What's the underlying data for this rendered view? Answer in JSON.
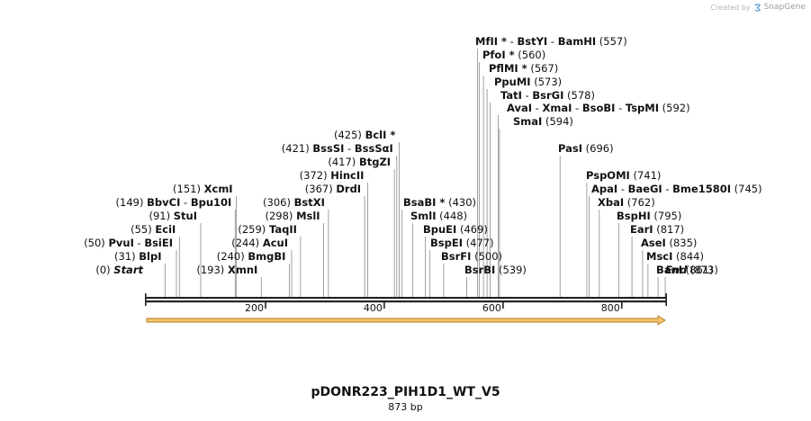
{
  "credit": {
    "prefix": "Created by",
    "brand": "SnapGene",
    "logo_color": "#6aa7d6"
  },
  "map": {
    "name": "pDONR223_PIH1D1_WT_V5",
    "length_label": "873 bp",
    "length": 873,
    "ticks": [
      {
        "pos": 200,
        "label": "200"
      },
      {
        "pos": 400,
        "label": "400"
      },
      {
        "pos": 600,
        "label": "600"
      },
      {
        "pos": 800,
        "label": "800"
      }
    ],
    "feature": {
      "start": 0,
      "end": 873,
      "color": "#f5c76a",
      "edge_color": "#b07a1c"
    },
    "labels": [
      {
        "pos": 0,
        "num": "(0)",
        "parts": [
          "Start"
        ],
        "special": true
      },
      {
        "pos": 31,
        "num": "(31)",
        "parts": [
          "BlpI"
        ]
      },
      {
        "pos": 50,
        "num": "(50)",
        "parts": [
          "PvuI",
          "BsiEI"
        ]
      },
      {
        "pos": 55,
        "num": "(55)",
        "parts": [
          "EciI"
        ]
      },
      {
        "pos": 91,
        "num": "(91)",
        "parts": [
          "StuI"
        ]
      },
      {
        "pos": 149,
        "num": "(149)",
        "parts": [
          "BbvCI",
          "Bpu10I"
        ]
      },
      {
        "pos": 151,
        "num": "(151)",
        "parts": [
          "XcmI"
        ]
      },
      {
        "pos": 193,
        "num": "(193)",
        "parts": [
          "XmnI"
        ]
      },
      {
        "pos": 240,
        "num": "(240)",
        "parts": [
          "BmgBI"
        ]
      },
      {
        "pos": 244,
        "num": "(244)",
        "parts": [
          "AcuI"
        ]
      },
      {
        "pos": 259,
        "num": "(259)",
        "parts": [
          "TaqII"
        ]
      },
      {
        "pos": 298,
        "num": "(298)",
        "parts": [
          "MslI"
        ]
      },
      {
        "pos": 306,
        "num": "(306)",
        "parts": [
          "BstXI"
        ]
      },
      {
        "pos": 367,
        "num": "(367)",
        "parts": [
          "DrdI"
        ]
      },
      {
        "pos": 372,
        "num": "(372)",
        "parts": [
          "HincII"
        ]
      },
      {
        "pos": 417,
        "num": "(417)",
        "parts": [
          "BtgZI"
        ]
      },
      {
        "pos": 421,
        "num": "(421)",
        "parts": [
          "BssSI",
          "BssSαI"
        ]
      },
      {
        "pos": 425,
        "num": "(425)",
        "parts": [
          "BclI *"
        ]
      },
      {
        "pos": 430,
        "num": "(430)",
        "parts": [
          "BsaBI *"
        ],
        "right": true
      },
      {
        "pos": 448,
        "num": "(448)",
        "parts": [
          "SmlI"
        ],
        "right": true
      },
      {
        "pos": 469,
        "num": "(469)",
        "parts": [
          "BpuEI"
        ],
        "right": true
      },
      {
        "pos": 477,
        "num": "(477)",
        "parts": [
          "BspEI"
        ],
        "right": true
      },
      {
        "pos": 500,
        "num": "(500)",
        "parts": [
          "BsrFI"
        ],
        "right": true
      },
      {
        "pos": 539,
        "num": "(539)",
        "parts": [
          "BsrBI"
        ],
        "right": true
      },
      {
        "pos": 557,
        "num": "(557)",
        "parts": [
          "MfII *",
          "BstYI",
          "BamHI"
        ],
        "right": true
      },
      {
        "pos": 560,
        "num": "(560)",
        "parts": [
          "PfoI *"
        ],
        "right": true
      },
      {
        "pos": 567,
        "num": "(567)",
        "parts": [
          "PflMI *"
        ],
        "right": true
      },
      {
        "pos": 573,
        "num": "(573)",
        "parts": [
          "PpuMI"
        ],
        "right": true
      },
      {
        "pos": 578,
        "num": "(578)",
        "parts": [
          "TatI",
          "BsrGI"
        ],
        "right": true
      },
      {
        "pos": 592,
        "num": "(592)",
        "parts": [
          "AvaI",
          "XmaI",
          "BsoBI",
          "TspMI"
        ],
        "right": true
      },
      {
        "pos": 594,
        "num": "(594)",
        "parts": [
          "SmaI"
        ],
        "right": true
      },
      {
        "pos": 696,
        "num": "(696)",
        "parts": [
          "PasI"
        ],
        "right": true
      },
      {
        "pos": 741,
        "num": "(741)",
        "parts": [
          "PspOMI"
        ],
        "right": true
      },
      {
        "pos": 745,
        "num": "(745)",
        "parts": [
          "ApaI",
          "BaeGI",
          "Bme1580I"
        ],
        "right": true
      },
      {
        "pos": 762,
        "num": "(762)",
        "parts": [
          "XbaI"
        ],
        "right": true
      },
      {
        "pos": 795,
        "num": "(795)",
        "parts": [
          "BspHI"
        ],
        "right": true
      },
      {
        "pos": 817,
        "num": "(817)",
        "parts": [
          "EarI"
        ],
        "right": true
      },
      {
        "pos": 835,
        "num": "(835)",
        "parts": [
          "AseI"
        ],
        "right": true
      },
      {
        "pos": 844,
        "num": "(844)",
        "parts": [
          "MscI"
        ],
        "right": true
      },
      {
        "pos": 861,
        "num": "(861)",
        "parts": [
          "BanI"
        ],
        "right": true
      },
      {
        "pos": 873,
        "num": "(873)",
        "parts": [
          "End"
        ],
        "right": true,
        "special": true
      }
    ]
  }
}
